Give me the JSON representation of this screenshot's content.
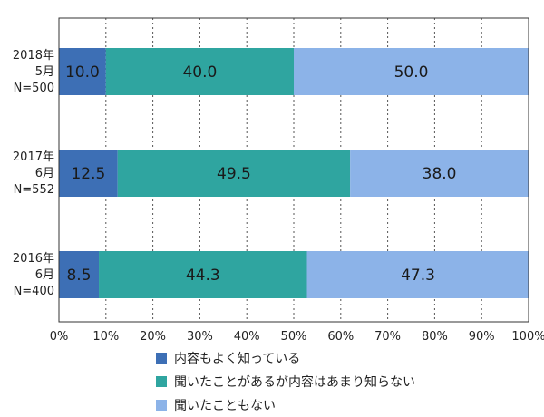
{
  "chart_data": {
    "type": "bar",
    "orientation": "horizontal",
    "stacked": true,
    "categories": [
      [
        "2018年",
        "5月",
        "N=500"
      ],
      [
        "2017年",
        "6月",
        "N=552"
      ],
      [
        "2016年",
        "6月",
        "N=400"
      ]
    ],
    "series": [
      {
        "name": "内容もよく知っている",
        "values": [
          10.0,
          12.5,
          8.5
        ],
        "color": "#3d6fb5"
      },
      {
        "name": "聞いたことがあるが内容はあまり知らない",
        "values": [
          40.0,
          49.5,
          44.3
        ],
        "color": "#2fa5a0"
      },
      {
        "name": "聞いたこともない",
        "values": [
          50.0,
          38.0,
          47.3
        ],
        "color": "#8cb3e8"
      }
    ],
    "data_labels": [
      [
        "10.0",
        "40.0",
        "50.0"
      ],
      [
        "12.5",
        "49.5",
        "38.0"
      ],
      [
        "8.5",
        "44.3",
        "47.3"
      ]
    ],
    "xlim": [
      0,
      100
    ],
    "x_ticks": [
      "0%",
      "10%",
      "20%",
      "30%",
      "40%",
      "50%",
      "60%",
      "70%",
      "80%",
      "90%",
      "100%"
    ],
    "grid": "vertical-dotted",
    "legend_position": "bottom"
  }
}
